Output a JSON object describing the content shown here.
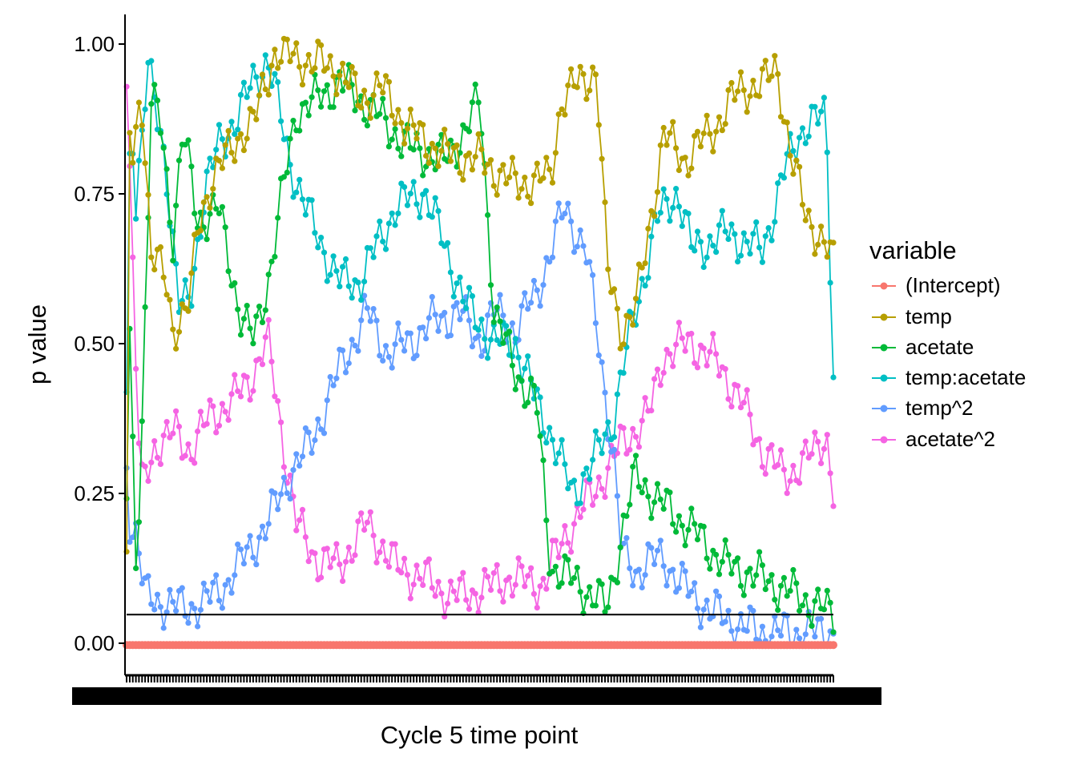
{
  "chart_data": {
    "type": "line",
    "xlabel": "Cycle 5 time point",
    "ylabel": "p value",
    "ylim": [
      -0.05,
      1.04
    ],
    "yticks": [
      "0.00",
      "0.25",
      "0.50",
      "0.75",
      "1.00"
    ],
    "ytick_values": [
      0,
      0.25,
      0.5,
      0.75,
      1.0
    ],
    "x_count": 230,
    "reference_line": 0.05,
    "grid": false,
    "legend": {
      "title": "variable",
      "position": "right"
    },
    "series": [
      {
        "name": "(Intercept)",
        "color": "#F8766D",
        "anchors": [
          [
            0,
            0.0
          ],
          [
            1,
            0.0
          ]
        ]
      },
      {
        "name": "temp",
        "color": "#B79F00",
        "anchors": [
          [
            0,
            0.12
          ],
          [
            0.004,
            0.85
          ],
          [
            0.01,
            0.78
          ],
          [
            0.02,
            0.93
          ],
          [
            0.035,
            0.65
          ],
          [
            0.055,
            0.6
          ],
          [
            0.065,
            0.52
          ],
          [
            0.09,
            0.57
          ],
          [
            0.1,
            0.68
          ],
          [
            0.12,
            0.77
          ],
          [
            0.15,
            0.82
          ],
          [
            0.165,
            0.85
          ],
          [
            0.18,
            0.86
          ],
          [
            0.21,
            0.98
          ],
          [
            0.23,
            0.97
          ],
          [
            0.27,
            0.96
          ],
          [
            0.3,
            0.95
          ],
          [
            0.33,
            0.9
          ],
          [
            0.36,
            0.92
          ],
          [
            0.4,
            0.85
          ],
          [
            0.45,
            0.81
          ],
          [
            0.5,
            0.8
          ],
          [
            0.55,
            0.76
          ],
          [
            0.6,
            0.77
          ],
          [
            0.615,
            0.9
          ],
          [
            0.665,
            0.95
          ],
          [
            0.68,
            0.62
          ],
          [
            0.7,
            0.52
          ],
          [
            0.72,
            0.55
          ],
          [
            0.76,
            0.84
          ],
          [
            0.79,
            0.8
          ],
          [
            0.83,
            0.85
          ],
          [
            0.87,
            0.92
          ],
          [
            0.9,
            0.92
          ],
          [
            0.92,
            0.96
          ],
          [
            0.94,
            0.8
          ],
          [
            0.96,
            0.72
          ],
          [
            0.98,
            0.67
          ],
          [
            1.0,
            0.63
          ]
        ]
      },
      {
        "name": "acetate",
        "color": "#00BA38",
        "anchors": [
          [
            0,
            0.25
          ],
          [
            0.005,
            0.55
          ],
          [
            0.012,
            0.12
          ],
          [
            0.02,
            0.3
          ],
          [
            0.035,
            0.9
          ],
          [
            0.05,
            0.85
          ],
          [
            0.065,
            0.67
          ],
          [
            0.08,
            0.85
          ],
          [
            0.1,
            0.7
          ],
          [
            0.13,
            0.72
          ],
          [
            0.16,
            0.55
          ],
          [
            0.18,
            0.5
          ],
          [
            0.2,
            0.6
          ],
          [
            0.24,
            0.88
          ],
          [
            0.27,
            0.9
          ],
          [
            0.3,
            0.93
          ],
          [
            0.35,
            0.88
          ],
          [
            0.4,
            0.82
          ],
          [
            0.45,
            0.8
          ],
          [
            0.48,
            0.85
          ],
          [
            0.5,
            0.9
          ],
          [
            0.52,
            0.55
          ],
          [
            0.55,
            0.45
          ],
          [
            0.58,
            0.4
          ],
          [
            0.6,
            0.13
          ],
          [
            0.64,
            0.1
          ],
          [
            0.68,
            0.06
          ],
          [
            0.7,
            0.18
          ],
          [
            0.72,
            0.28
          ],
          [
            0.75,
            0.24
          ],
          [
            0.8,
            0.19
          ],
          [
            0.85,
            0.13
          ],
          [
            0.9,
            0.11
          ],
          [
            0.95,
            0.08
          ],
          [
            1.0,
            0.05
          ]
        ]
      },
      {
        "name": "temp:acetate",
        "color": "#00BFC4",
        "anchors": [
          [
            0,
            0.4
          ],
          [
            0.006,
            0.95
          ],
          [
            0.012,
            0.72
          ],
          [
            0.03,
            0.95
          ],
          [
            0.055,
            0.8
          ],
          [
            0.075,
            0.55
          ],
          [
            0.09,
            0.57
          ],
          [
            0.11,
            0.75
          ],
          [
            0.13,
            0.82
          ],
          [
            0.16,
            0.88
          ],
          [
            0.18,
            0.93
          ],
          [
            0.2,
            0.97
          ],
          [
            0.23,
            0.8
          ],
          [
            0.26,
            0.7
          ],
          [
            0.3,
            0.6
          ],
          [
            0.33,
            0.6
          ],
          [
            0.38,
            0.72
          ],
          [
            0.42,
            0.75
          ],
          [
            0.45,
            0.66
          ],
          [
            0.48,
            0.56
          ],
          [
            0.52,
            0.5
          ],
          [
            0.55,
            0.5
          ],
          [
            0.58,
            0.4
          ],
          [
            0.6,
            0.35
          ],
          [
            0.63,
            0.25
          ],
          [
            0.66,
            0.3
          ],
          [
            0.69,
            0.38
          ],
          [
            0.71,
            0.5
          ],
          [
            0.75,
            0.7
          ],
          [
            0.78,
            0.75
          ],
          [
            0.8,
            0.65
          ],
          [
            0.85,
            0.68
          ],
          [
            0.9,
            0.65
          ],
          [
            0.93,
            0.78
          ],
          [
            0.96,
            0.86
          ],
          [
            0.99,
            0.87
          ],
          [
            1.0,
            0.45
          ]
        ]
      },
      {
        "name": "temp^2",
        "color": "#619CFF",
        "anchors": [
          [
            0,
            0.3
          ],
          [
            0.005,
            0.2
          ],
          [
            0.015,
            0.18
          ],
          [
            0.025,
            0.08
          ],
          [
            0.05,
            0.07
          ],
          [
            0.08,
            0.06
          ],
          [
            0.11,
            0.07
          ],
          [
            0.14,
            0.1
          ],
          [
            0.17,
            0.15
          ],
          [
            0.2,
            0.2
          ],
          [
            0.23,
            0.28
          ],
          [
            0.26,
            0.33
          ],
          [
            0.3,
            0.45
          ],
          [
            0.34,
            0.55
          ],
          [
            0.37,
            0.48
          ],
          [
            0.4,
            0.5
          ],
          [
            0.43,
            0.53
          ],
          [
            0.47,
            0.55
          ],
          [
            0.5,
            0.5
          ],
          [
            0.52,
            0.55
          ],
          [
            0.55,
            0.52
          ],
          [
            0.58,
            0.58
          ],
          [
            0.62,
            0.72
          ],
          [
            0.65,
            0.65
          ],
          [
            0.67,
            0.48
          ],
          [
            0.69,
            0.3
          ],
          [
            0.7,
            0.15
          ],
          [
            0.72,
            0.12
          ],
          [
            0.74,
            0.14
          ],
          [
            0.76,
            0.14
          ],
          [
            0.8,
            0.08
          ],
          [
            0.85,
            0.04
          ],
          [
            0.9,
            0.02
          ],
          [
            0.95,
            0.02
          ],
          [
            1.0,
            0.02
          ]
        ]
      },
      {
        "name": "acetate^2",
        "color": "#F564E3",
        "anchors": [
          [
            0,
            0.96
          ],
          [
            0.004,
            0.8
          ],
          [
            0.012,
            0.5
          ],
          [
            0.02,
            0.25
          ],
          [
            0.04,
            0.33
          ],
          [
            0.07,
            0.35
          ],
          [
            0.09,
            0.32
          ],
          [
            0.12,
            0.38
          ],
          [
            0.15,
            0.4
          ],
          [
            0.18,
            0.45
          ],
          [
            0.2,
            0.5
          ],
          [
            0.22,
            0.35
          ],
          [
            0.24,
            0.2
          ],
          [
            0.27,
            0.14
          ],
          [
            0.3,
            0.13
          ],
          [
            0.34,
            0.2
          ],
          [
            0.38,
            0.13
          ],
          [
            0.42,
            0.11
          ],
          [
            0.46,
            0.08
          ],
          [
            0.5,
            0.09
          ],
          [
            0.54,
            0.11
          ],
          [
            0.59,
            0.1
          ],
          [
            0.62,
            0.18
          ],
          [
            0.66,
            0.25
          ],
          [
            0.7,
            0.33
          ],
          [
            0.74,
            0.38
          ],
          [
            0.76,
            0.48
          ],
          [
            0.8,
            0.5
          ],
          [
            0.84,
            0.46
          ],
          [
            0.87,
            0.4
          ],
          [
            0.9,
            0.32
          ],
          [
            0.93,
            0.28
          ],
          [
            0.96,
            0.3
          ],
          [
            0.99,
            0.35
          ],
          [
            1.0,
            0.25
          ]
        ]
      }
    ]
  }
}
